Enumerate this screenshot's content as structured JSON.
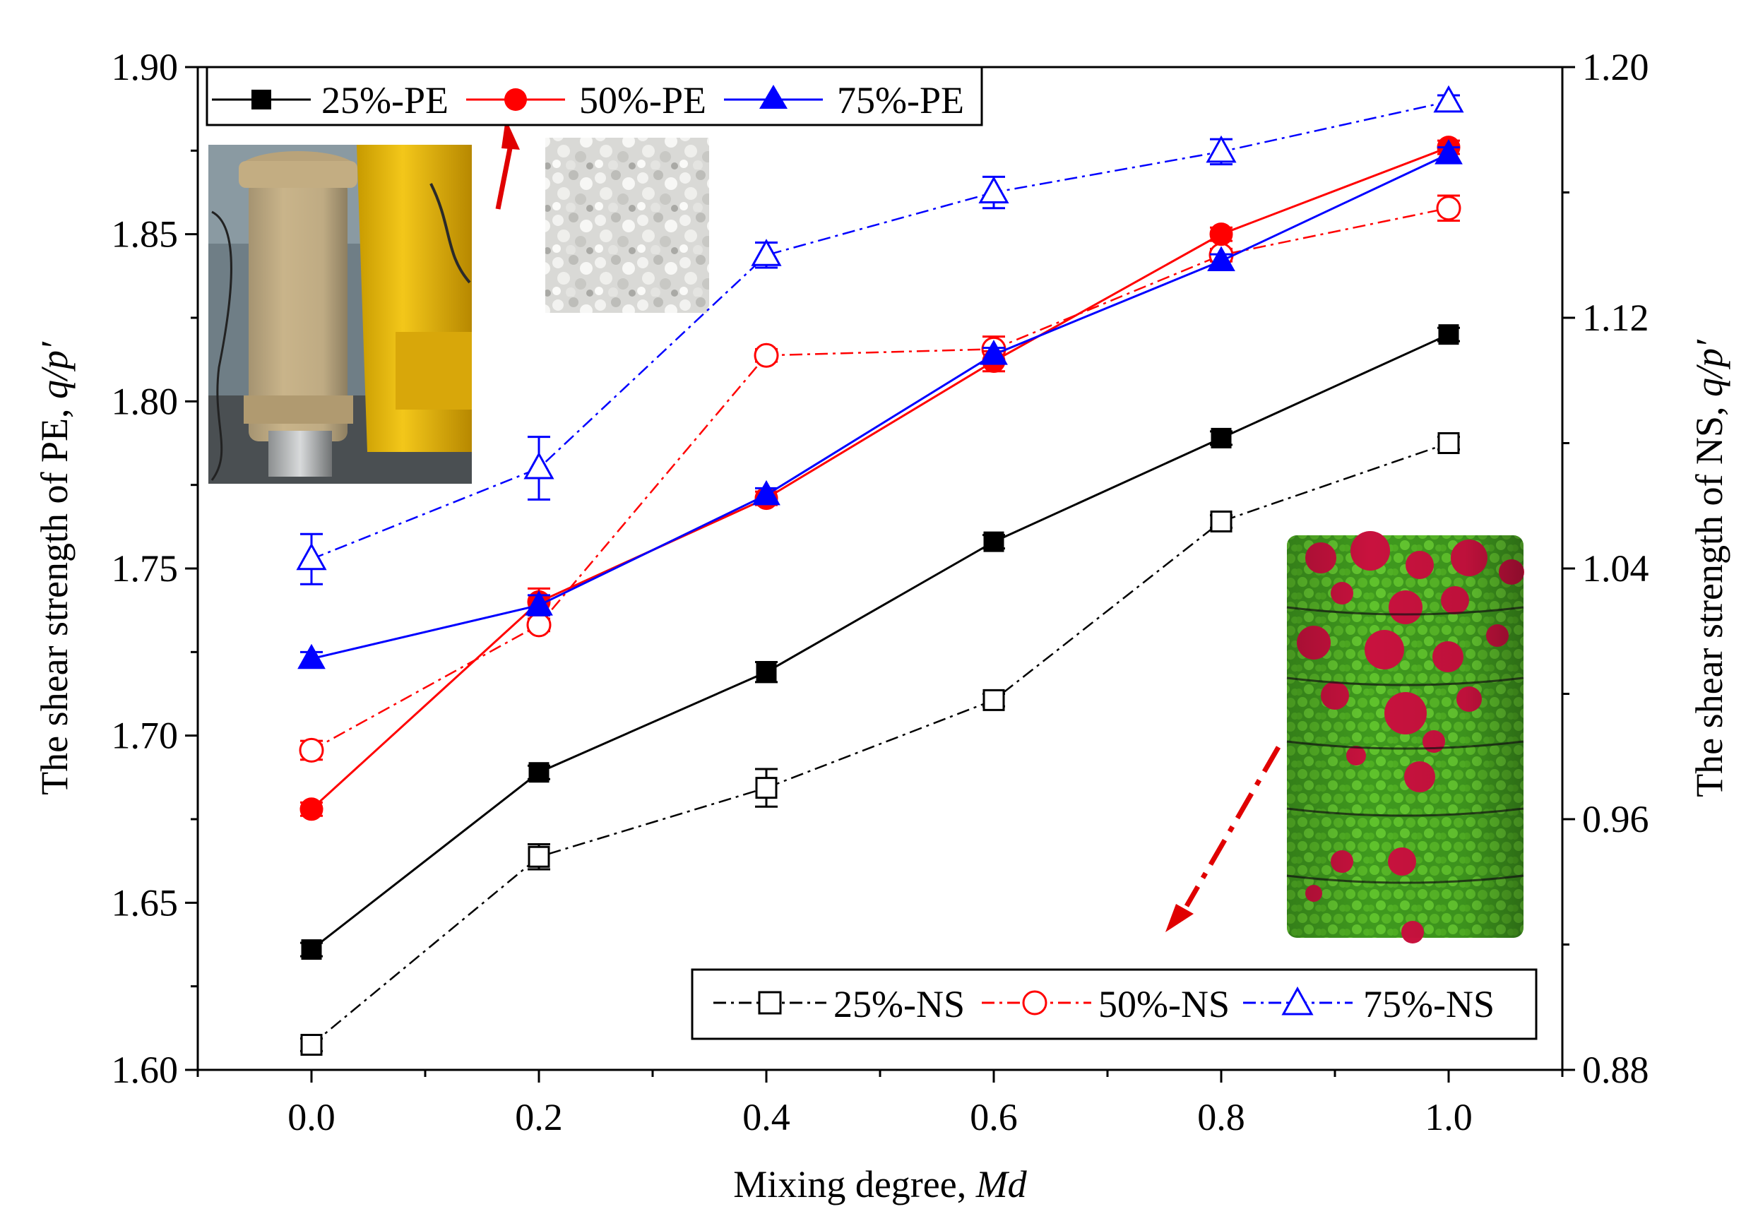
{
  "chart_data": {
    "type": "line",
    "xlabel": "Mixing degree, ",
    "xlabel_italic": "Md",
    "ylabel_left": "The shear strength of PE, ",
    "ylabel_left_italic": "q/p′",
    "ylabel_right": "The shear strength of NS, ",
    "ylabel_right_italic": "q/p′",
    "x_ticks": [
      "0.0",
      "0.2",
      "0.4",
      "0.6",
      "0.8",
      "1.0"
    ],
    "x_values": [
      0.0,
      0.2,
      0.4,
      0.6,
      0.8,
      1.0
    ],
    "xlim": [
      -0.1,
      1.1
    ],
    "ylim_left": [
      1.6,
      1.9
    ],
    "y_ticks_left": [
      "1.60",
      "1.65",
      "1.70",
      "1.75",
      "1.80",
      "1.85",
      "1.90"
    ],
    "ylim_right": [
      0.88,
      1.2
    ],
    "y_ticks_right": [
      "0.88",
      "0.96",
      "1.04",
      "1.12",
      "1.20"
    ],
    "series_left": [
      {
        "name": "25%-PE",
        "color": "#000000",
        "marker": "square",
        "filled": true,
        "values": [
          1.636,
          1.689,
          1.719,
          1.758,
          1.789,
          1.82
        ],
        "err": [
          0.002,
          0.002,
          0.003,
          0.002,
          0.002,
          0.002
        ]
      },
      {
        "name": "50%-PE",
        "color": "#ff0000",
        "marker": "circle",
        "filled": true,
        "values": [
          1.678,
          1.74,
          1.771,
          1.812,
          1.85,
          1.876
        ],
        "err": [
          0.002,
          0.004,
          0.002,
          0.003,
          0.002,
          0.002
        ]
      },
      {
        "name": "75%-PE",
        "color": "#0000ff",
        "marker": "triangle",
        "filled": true,
        "values": [
          1.723,
          1.739,
          1.772,
          1.814,
          1.842,
          1.874
        ],
        "err": [
          0.002,
          0.003,
          0.002,
          0.002,
          0.002,
          0.002
        ]
      }
    ],
    "series_right": [
      {
        "name": "25%-NS",
        "color": "#000000",
        "marker": "square",
        "filled": false,
        "values": [
          0.888,
          0.948,
          0.97,
          0.998,
          1.055,
          1.08
        ],
        "err": [
          0.002,
          0.004,
          0.006,
          0.002,
          0.002,
          0.002
        ]
      },
      {
        "name": "50%-NS",
        "color": "#ff0000",
        "marker": "circle",
        "filled": false,
        "values": [
          0.982,
          1.022,
          1.108,
          1.11,
          1.14,
          1.155
        ],
        "err": [
          0.003,
          0.002,
          0.002,
          0.004,
          0.002,
          0.004
        ]
      },
      {
        "name": "75%-NS",
        "color": "#0000ff",
        "marker": "triangle",
        "filled": false,
        "values": [
          1.043,
          1.072,
          1.14,
          1.16,
          1.173,
          1.189
        ],
        "err": [
          0.008,
          0.01,
          0.004,
          0.005,
          0.004,
          0.002
        ]
      }
    ]
  }
}
